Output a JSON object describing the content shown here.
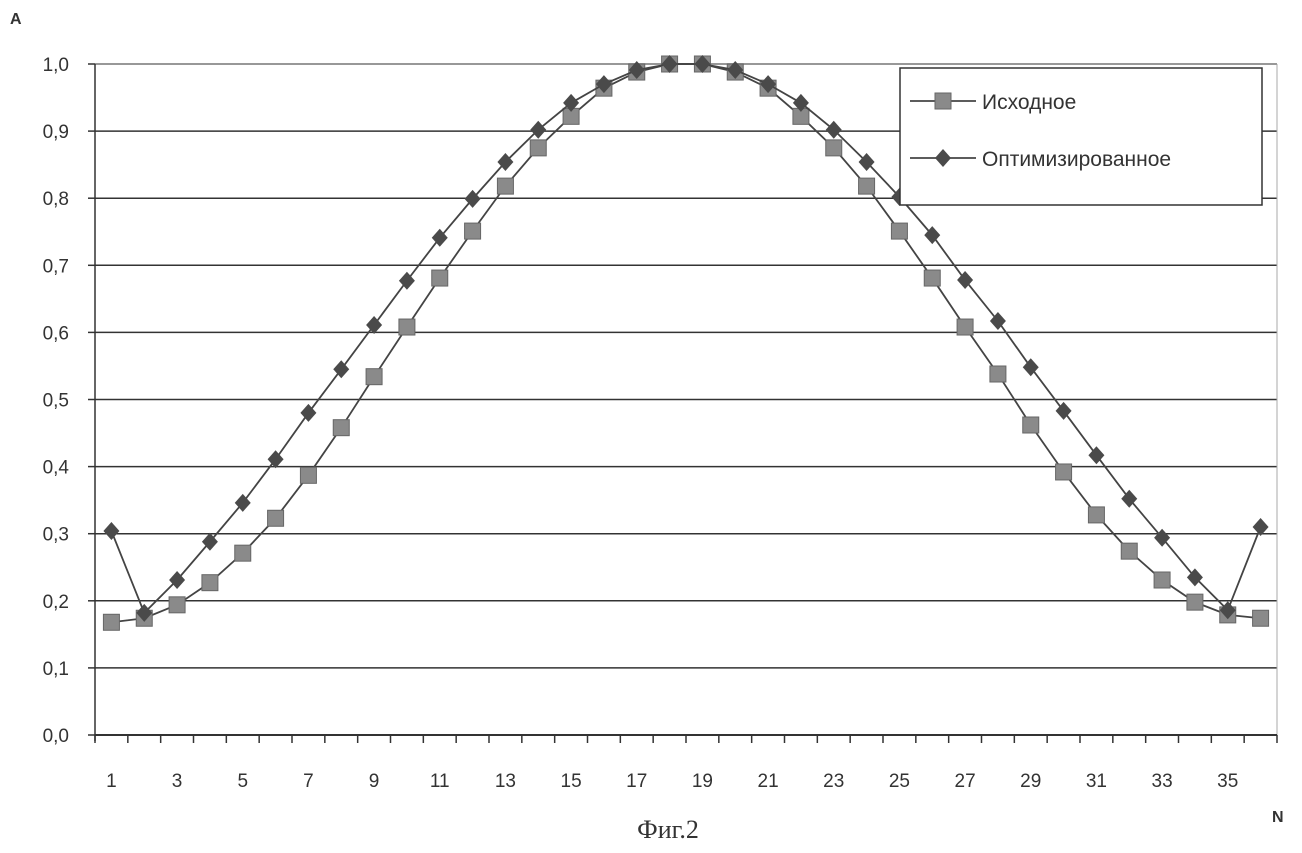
{
  "chart_data": {
    "type": "line",
    "title": "",
    "caption": "Фиг.2",
    "xlabel": "N",
    "ylabel": "A",
    "x": [
      1,
      2,
      3,
      4,
      5,
      6,
      7,
      8,
      9,
      10,
      11,
      12,
      13,
      14,
      15,
      16,
      17,
      18,
      19,
      20,
      21,
      22,
      23,
      24,
      25,
      26,
      27,
      28,
      29,
      30,
      31,
      32,
      33,
      34,
      35,
      36
    ],
    "x_tick_labels": [
      "1",
      "3",
      "5",
      "7",
      "9",
      "11",
      "13",
      "15",
      "17",
      "19",
      "21",
      "23",
      "25",
      "27",
      "29",
      "31",
      "33",
      "35"
    ],
    "y_tick_labels": [
      "0,0",
      "0,1",
      "0,2",
      "0,3",
      "0,4",
      "0,5",
      "0,6",
      "0,7",
      "0,8",
      "0,9",
      "1,0"
    ],
    "ylim": [
      0,
      1
    ],
    "grid": "horizontal",
    "legend_position": "top-right",
    "series": [
      {
        "name": "Исходное",
        "marker": "square",
        "color": "#8a8a8a",
        "values": [
          0.168,
          0.174,
          0.194,
          0.227,
          0.271,
          0.323,
          0.387,
          0.458,
          0.534,
          0.608,
          0.681,
          0.751,
          0.818,
          0.875,
          0.922,
          0.964,
          0.988,
          1.0,
          1.0,
          0.988,
          0.964,
          0.922,
          0.875,
          0.818,
          0.751,
          0.681,
          0.608,
          0.538,
          0.462,
          0.392,
          0.328,
          0.274,
          0.231,
          0.198,
          0.179,
          0.174
        ]
      },
      {
        "name": "Оптимизированное",
        "marker": "diamond",
        "color": "#4a4a4a",
        "values": [
          0.304,
          0.182,
          0.231,
          0.288,
          0.346,
          0.411,
          0.48,
          0.545,
          0.611,
          0.677,
          0.741,
          0.799,
          0.854,
          0.902,
          0.942,
          0.97,
          0.991,
          1.0,
          1.0,
          0.991,
          0.97,
          0.942,
          0.902,
          0.854,
          0.802,
          0.745,
          0.678,
          0.617,
          0.548,
          0.483,
          0.417,
          0.352,
          0.294,
          0.235,
          0.186,
          0.31
        ]
      }
    ]
  }
}
